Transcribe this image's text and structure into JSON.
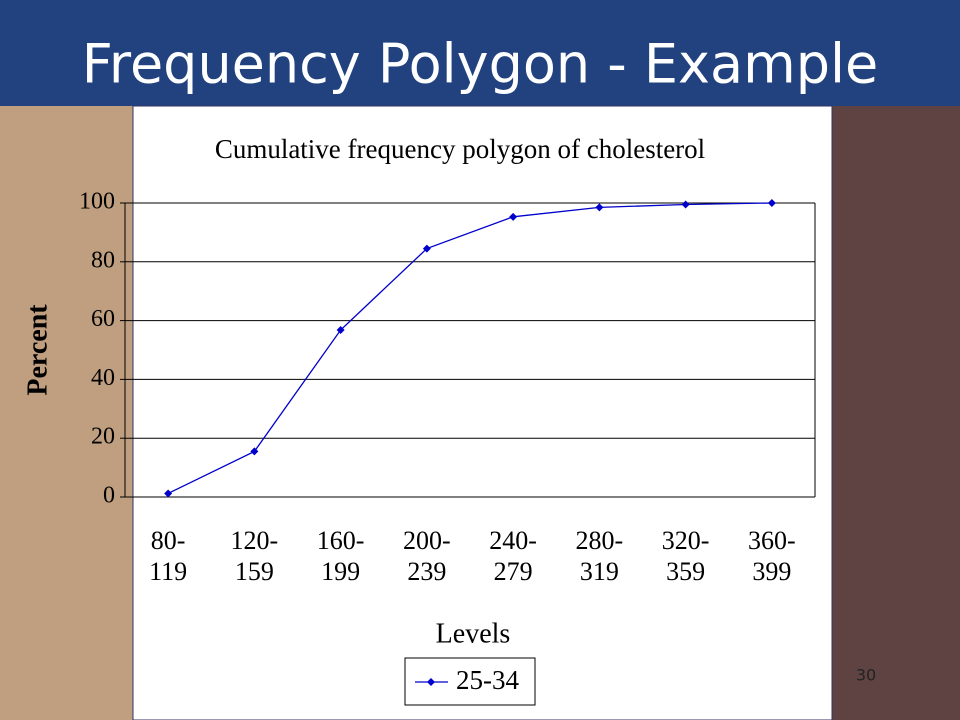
{
  "slide": {
    "title": "Frequency Polygon - Example",
    "page_number": "30"
  },
  "chart_data": {
    "type": "line",
    "title": "Cumulative frequency polygon of cholesterol",
    "x_label": "Levels",
    "y_label": "Percent",
    "categories": [
      "80-\n119",
      "120-\n159",
      "160-\n199",
      "200-\n239",
      "240-\n279",
      "280-\n319",
      "320-\n359",
      "360-\n399"
    ],
    "series": [
      {
        "name": "25-34",
        "color": "#0000cc",
        "values": [
          1.2,
          15.5,
          56.8,
          84.5,
          95.3,
          98.5,
          99.5,
          100
        ]
      }
    ],
    "ylim": [
      0,
      100
    ],
    "yticks": [
      0,
      20,
      40,
      60,
      80,
      100
    ],
    "grid": true,
    "legend": "bottom"
  }
}
